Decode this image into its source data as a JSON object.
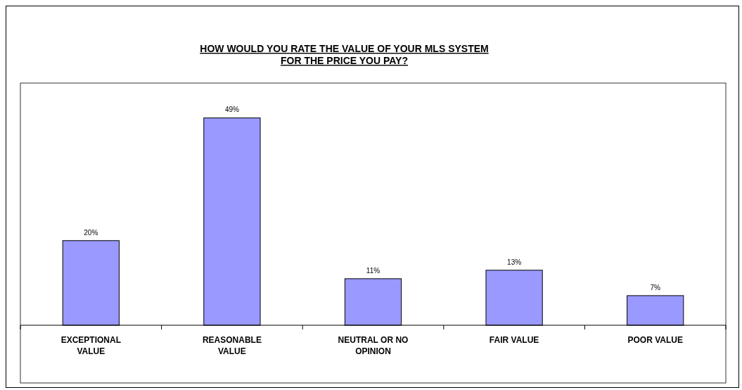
{
  "chart_data": {
    "type": "bar",
    "title": "HOW WOULD YOU RATE THE VALUE OF YOUR MLS SYSTEM\nFOR THE PRICE YOU PAY?",
    "categories": [
      "EXCEPTIONAL VALUE",
      "REASONABLE VALUE",
      "NEUTRAL OR NO OPINION",
      "FAIR VALUE",
      "POOR VALUE"
    ],
    "values": [
      20,
      49,
      11,
      13,
      7
    ],
    "value_labels": [
      "20%",
      "49%",
      "11%",
      "13%",
      "7%"
    ],
    "color": "#9999ff"
  }
}
